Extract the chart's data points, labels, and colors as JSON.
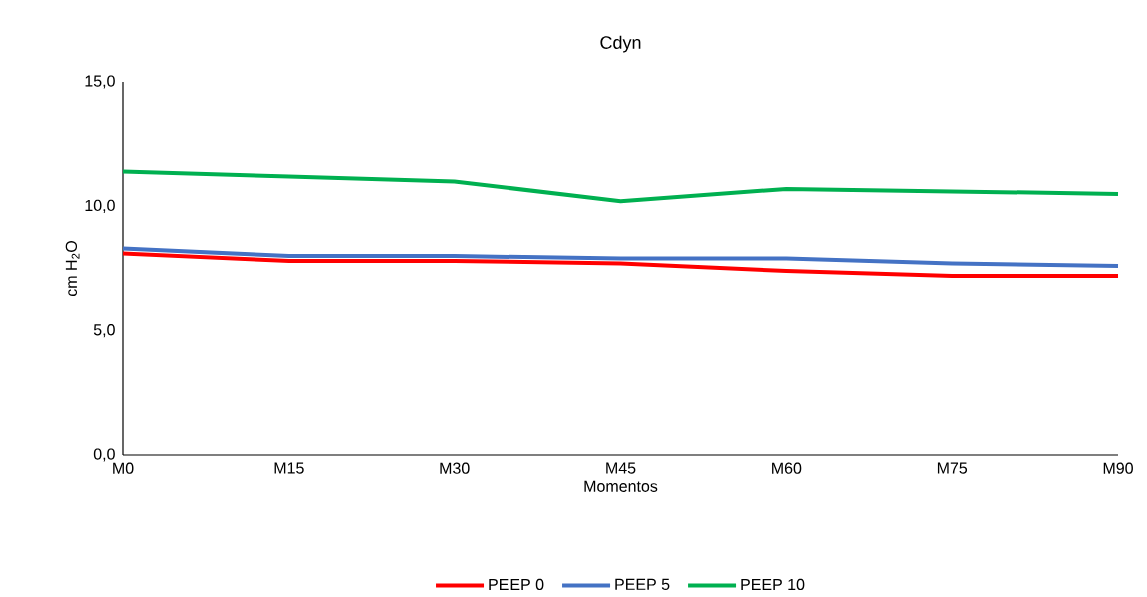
{
  "chart_data": {
    "type": "line",
    "title": "Cdyn",
    "xlabel": "Momentos",
    "ylabel": "cm H$_{2}$O",
    "categories": [
      "M0",
      "M15",
      "M30",
      "M45",
      "M60",
      "M75",
      "M90"
    ],
    "series": [
      {
        "name": "PEEP 0",
        "color": "#ff0000",
        "values": [
          8.1,
          7.8,
          7.8,
          7.7,
          7.4,
          7.2,
          7.2
        ]
      },
      {
        "name": "PEEP 5",
        "color": "#4472c4",
        "values": [
          8.3,
          8.0,
          8.0,
          7.9,
          7.9,
          7.7,
          7.6
        ]
      },
      {
        "name": "PEEP 10",
        "color": "#00b050",
        "values": [
          11.4,
          11.2,
          11.0,
          10.2,
          10.7,
          10.6,
          10.5
        ]
      }
    ],
    "ylim": [
      0,
      15
    ],
    "yticks": [
      {
        "value": 0,
        "label": "0,0"
      },
      {
        "value": 5,
        "label": "5,0"
      },
      {
        "value": 10,
        "label": "10,0"
      },
      {
        "value": 15,
        "label": "15,0"
      }
    ],
    "grid": false,
    "legend": "bottom",
    "marker": "none",
    "line_style": "solid"
  }
}
